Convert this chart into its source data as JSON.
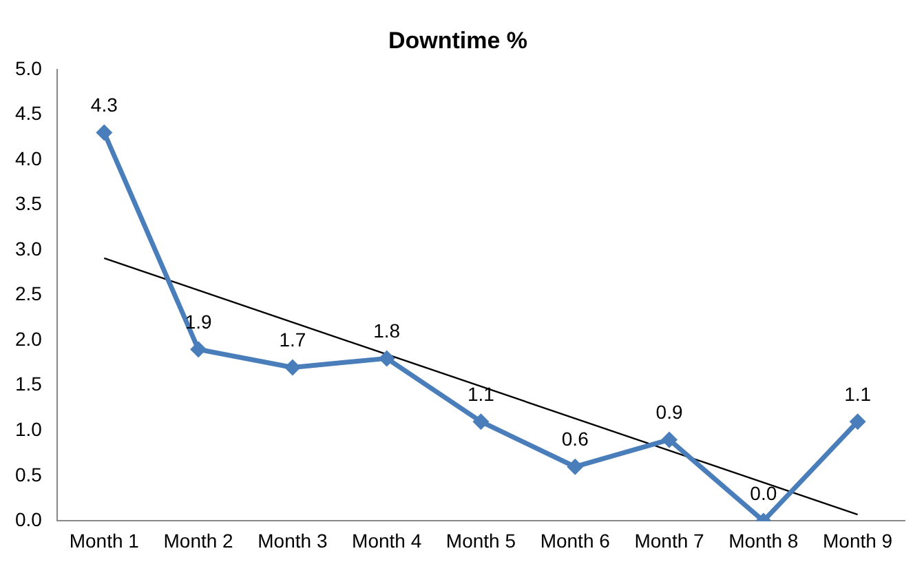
{
  "chart_data": {
    "type": "line",
    "title": "Downtime %",
    "categories": [
      "Month 1",
      "Month 2",
      "Month 3",
      "Month 4",
      "Month 5",
      "Month 6",
      "Month 7",
      "Month 8",
      "Month 9"
    ],
    "series": [
      {
        "color": "#4a7ebb",
        "marker": "diamond",
        "values": [
          4.3,
          1.9,
          1.7,
          1.8,
          1.1,
          0.6,
          0.9,
          0.0,
          1.1
        ],
        "value_labels": [
          "4.3",
          "1.9",
          "1.7",
          "1.8",
          "1.1",
          "0.6",
          "0.9",
          "0.0",
          "1.1"
        ]
      },
      {
        "type": "line",
        "color": "#000000",
        "marker": "none",
        "x": [
          "Month 1",
          "Month 9"
        ],
        "values": [
          2.91,
          0.07
        ]
      }
    ],
    "ylim": [
      0,
      5
    ],
    "yticks": [
      {
        "value": 0,
        "label": "0.0"
      },
      {
        "value": 0.5,
        "label": "0.5"
      },
      {
        "value": 1,
        "label": "1.0"
      },
      {
        "value": 1.5,
        "label": "1.5"
      },
      {
        "value": 2,
        "label": "2.0"
      },
      {
        "value": 2.5,
        "label": "2.5"
      },
      {
        "value": 3,
        "label": "3.0"
      },
      {
        "value": 3.5,
        "label": "3.5"
      },
      {
        "value": 4,
        "label": "4.0"
      },
      {
        "value": 4.5,
        "label": "4.5"
      },
      {
        "value": 5,
        "label": "5.0"
      }
    ],
    "grid": false,
    "legend": false
  }
}
